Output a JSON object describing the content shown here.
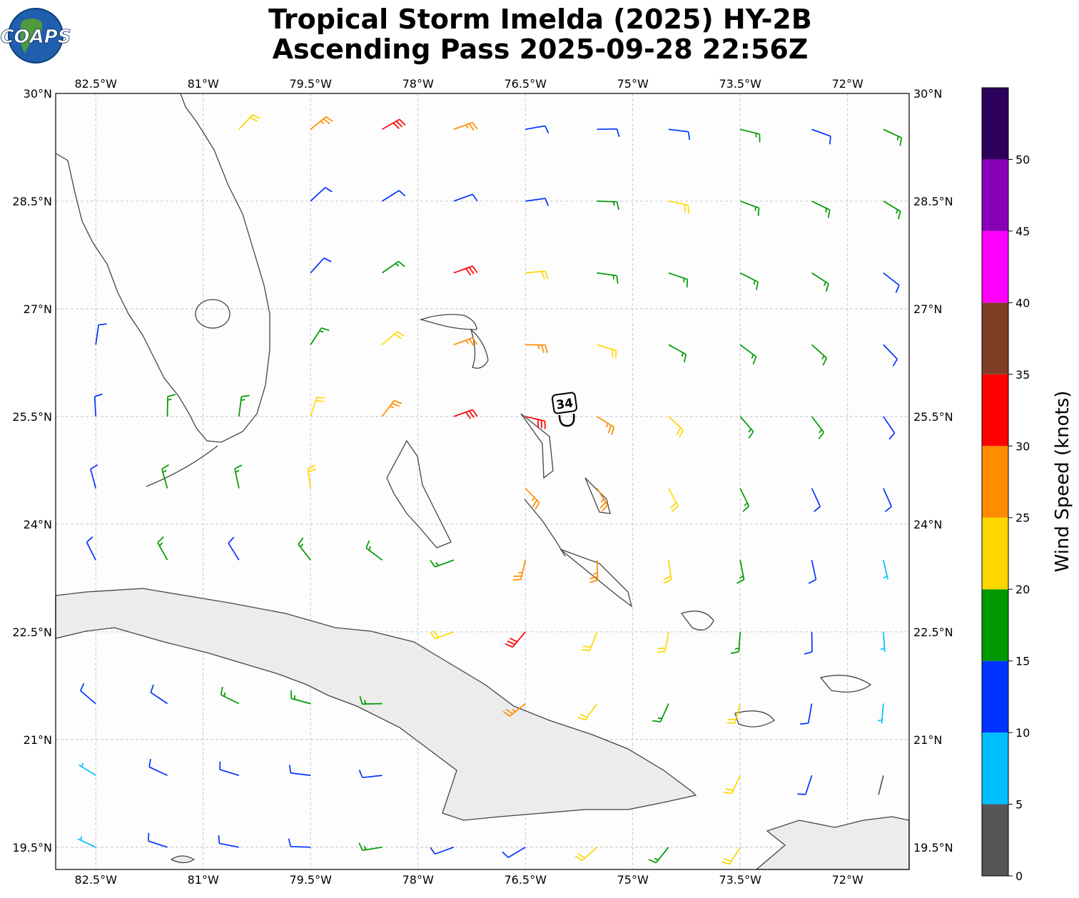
{
  "chart_data": {
    "type": "wind_barbs",
    "title": "Tropical Storm Imelda (2025) HY-2B",
    "subtitle": "Ascending Pass 2025-09-28 22:56Z",
    "logo": "COAPS",
    "annotation": "34",
    "xlim": [
      -83.06,
      -71.14
    ],
    "ylim": [
      19.19,
      30
    ],
    "xticks": [
      {
        "value": -82.5,
        "label": "82.5°W"
      },
      {
        "value": -81,
        "label": "81°W"
      },
      {
        "value": -79.5,
        "label": "79.5°W"
      },
      {
        "value": -78,
        "label": "78°W"
      },
      {
        "value": -76.5,
        "label": "76.5°W"
      },
      {
        "value": -75,
        "label": "75°W"
      },
      {
        "value": -73.5,
        "label": "73.5°W"
      },
      {
        "value": -72,
        "label": "72°W"
      }
    ],
    "yticks": [
      {
        "value": 19.5,
        "label": "19.5°N"
      },
      {
        "value": 21,
        "label": "21°N"
      },
      {
        "value": 22.5,
        "label": "22.5°N"
      },
      {
        "value": 24,
        "label": "24°N"
      },
      {
        "value": 25.5,
        "label": "25.5°N"
      },
      {
        "value": 27,
        "label": "27°N"
      },
      {
        "value": 28.5,
        "label": "28.5°N"
      },
      {
        "value": 30,
        "label": "30°N"
      }
    ],
    "grid": true,
    "colorbar": {
      "label": "Wind Speed (knots)",
      "bounds": [
        0,
        5,
        10,
        15,
        20,
        25,
        30,
        35,
        40,
        45,
        50,
        55
      ],
      "colors": [
        "#555555",
        "#00bfff",
        "#0033ff",
        "#009900",
        "#ffd700",
        "#ff8c00",
        "#ff0000",
        "#803d26",
        "#ff00ff",
        "#8a00b8",
        "#2d0059"
      ],
      "ticks": [
        0,
        5,
        10,
        15,
        20,
        25,
        30,
        35,
        40,
        45,
        50
      ]
    },
    "barbs": {
      "lon": [
        -80.5,
        -79.5,
        -78.5,
        -77.5,
        -76.5,
        -75.5,
        -74.5,
        -73.5,
        -72.5,
        -71.5,
        -79.5,
        -78.5,
        -77.5,
        -76.5,
        -75.5,
        -74.5,
        -73.5,
        -72.5,
        -71.5,
        -79.5,
        -78.5,
        -77.5,
        -76.5,
        -75.5,
        -74.5,
        -73.5,
        -72.5,
        -71.5,
        -82.5,
        -79.5,
        -78.5,
        -77.5,
        -76.5,
        -75.5,
        -74.5,
        -73.5,
        -72.5,
        -71.5,
        -82.5,
        -81.5,
        -80.5,
        -79.5,
        -78.5,
        -77.5,
        -76.5,
        -75.5,
        -74.5,
        -73.5,
        -72.5,
        -71.5,
        -82.5,
        -81.5,
        -80.5,
        -79.5,
        -76.5,
        -75.5,
        -74.5,
        -73.5,
        -72.5,
        -71.5,
        -82.5,
        -81.5,
        -80.5,
        -79.5,
        -78.5,
        -77.5,
        -76.5,
        -75.5,
        -74.5,
        -73.5,
        -72.5,
        -71.5,
        -77.5,
        -76.5,
        -75.5,
        -74.5,
        -73.5,
        -72.5,
        -71.5,
        -82.5,
        -81.5,
        -80.5,
        -79.5,
        -78.5,
        -76.5,
        -75.5,
        -74.5,
        -73.5,
        -72.5,
        -71.5,
        -82.5,
        -81.5,
        -80.5,
        -79.5,
        -78.5,
        -73.5,
        -72.5,
        -71.5,
        -82.5,
        -81.5,
        -80.5,
        -79.5,
        -78.5,
        -77.5,
        -76.5,
        -75.5,
        -74.5,
        -73.5
      ],
      "lat": [
        29.5,
        29.5,
        29.5,
        29.5,
        29.5,
        29.5,
        29.5,
        29.5,
        29.5,
        29.5,
        28.5,
        28.5,
        28.5,
        28.5,
        28.5,
        28.5,
        28.5,
        28.5,
        28.5,
        27.5,
        27.5,
        27.5,
        27.5,
        27.5,
        27.5,
        27.5,
        27.5,
        27.5,
        26.5,
        26.5,
        26.5,
        26.5,
        26.5,
        26.5,
        26.5,
        26.5,
        26.5,
        26.5,
        25.5,
        25.5,
        25.5,
        25.5,
        25.5,
        25.5,
        25.5,
        25.5,
        25.5,
        25.5,
        25.5,
        25.5,
        24.5,
        24.5,
        24.5,
        24.5,
        24.5,
        24.5,
        24.5,
        24.5,
        24.5,
        24.5,
        23.5,
        23.5,
        23.5,
        23.5,
        23.5,
        23.5,
        23.5,
        23.5,
        23.5,
        23.5,
        23.5,
        23.5,
        22.5,
        22.5,
        22.5,
        22.5,
        22.5,
        22.5,
        22.5,
        21.5,
        21.5,
        21.5,
        21.5,
        21.5,
        21.5,
        21.5,
        21.5,
        21.5,
        21.5,
        21.5,
        20.5,
        20.5,
        20.5,
        20.5,
        20.5,
        20.5,
        20.5,
        20.5,
        19.5,
        19.5,
        19.5,
        19.5,
        19.5,
        19.5,
        19.5,
        19.5,
        19.5,
        19.5
      ],
      "speed": [
        22,
        25,
        30,
        27,
        14,
        12,
        13,
        16,
        14,
        16,
        13,
        13,
        14,
        14,
        17,
        21,
        17,
        18,
        17,
        13,
        18,
        32,
        22,
        18,
        18,
        17,
        16,
        14,
        13,
        18,
        22,
        27,
        28,
        23,
        18,
        17,
        16,
        14,
        13,
        16,
        17,
        21,
        27,
        32,
        33,
        27,
        22,
        18,
        17,
        14,
        13,
        16,
        17,
        21,
        27,
        26,
        23,
        19,
        14,
        13,
        12,
        16,
        14,
        17,
        17,
        18,
        26,
        27,
        24,
        19,
        14,
        9,
        22,
        31,
        24,
        21,
        18,
        14,
        9,
        13,
        13,
        17,
        16,
        16,
        26,
        23,
        18,
        21,
        13,
        8,
        9,
        12,
        13,
        12,
        13,
        22,
        12,
        4,
        8,
        11,
        12,
        13,
        17,
        13,
        13,
        21,
        17,
        21
      ],
      "direction": [
        43,
        51,
        60,
        70,
        80,
        89,
        97,
        104,
        110,
        115,
        47,
        58,
        70,
        82,
        92,
        102,
        110,
        116,
        121,
        42,
        55,
        70,
        85,
        98,
        109,
        117,
        123,
        128,
        8,
        33,
        49,
        70,
        91,
        107,
        119,
        127,
        132,
        136,
        357,
        1,
        7,
        18,
        37,
        70,
        103,
        122,
        133,
        139,
        143,
        146,
        345,
        344,
        348,
        352,
        136,
        148,
        152,
        154,
        155,
        156,
        333,
        331,
        328,
        322,
        307,
        250,
        193,
        178,
        172,
        169,
        168,
        167,
        250,
        220,
        201,
        190,
        184,
        179,
        176,
        310,
        304,
        296,
        285,
        269,
        231,
        215,
        204,
        195,
        190,
        185,
        302,
        295,
        287,
        277,
        264,
        205,
        198,
        194,
        295,
        288,
        281,
        272,
        261,
        250,
        239,
        228,
        219,
        212
      ]
    }
  }
}
